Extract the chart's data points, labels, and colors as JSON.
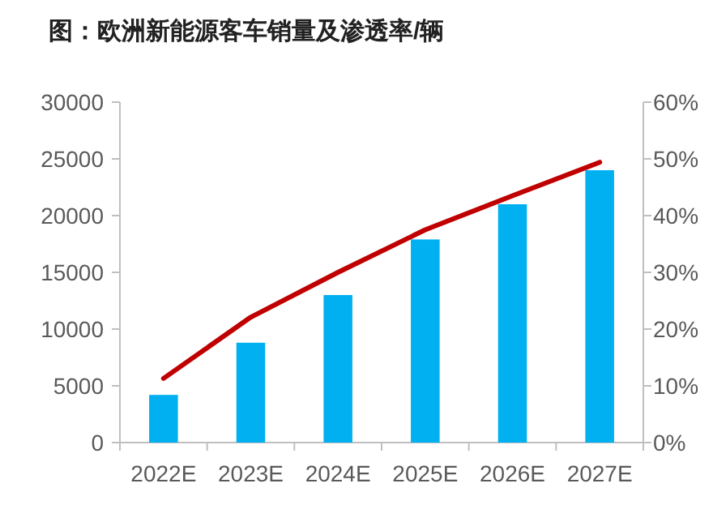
{
  "chart_data": {
    "type": "bar",
    "title": "图：欧洲新能源客车销量及渗透率/辆",
    "categories": [
      "2022E",
      "2023E",
      "2024E",
      "2025E",
      "2026E",
      "2027E"
    ],
    "series": [
      {
        "color": "#00b0f0",
        "values": [
          4200,
          8800,
          13000,
          17900,
          21000,
          24000
        ]
      },
      {
        "type": "line",
        "axis": "y2",
        "color": "#c00000",
        "values": [
          11.3,
          22.1,
          30,
          37.5,
          43.5,
          49.4
        ]
      }
    ],
    "ylim": [
      0,
      30000
    ],
    "yticks": [
      0,
      5000,
      10000,
      15000,
      20000,
      25000,
      30000
    ],
    "y2lim": [
      0,
      60
    ],
    "y2ticks": [
      {
        "value": 0,
        "label": "0%"
      },
      {
        "value": 10,
        "label": "10%"
      },
      {
        "value": 20,
        "label": "20%"
      },
      {
        "value": 30,
        "label": "30%"
      },
      {
        "value": 40,
        "label": "40%"
      },
      {
        "value": 50,
        "label": "50%"
      },
      {
        "value": 60,
        "label": "60%"
      }
    ]
  }
}
